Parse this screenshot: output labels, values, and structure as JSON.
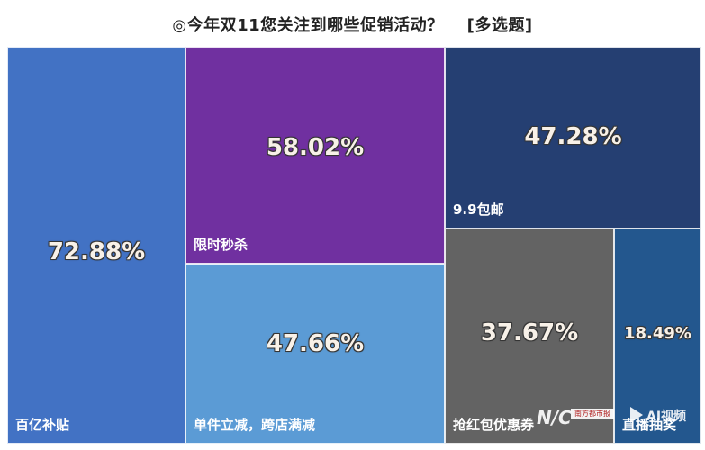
{
  "title": "◎今年双11您关注到哪些促销活动？",
  "title_suffix": "[多选题]",
  "chart_data": {
    "type": "treemap",
    "unit": "%",
    "items": [
      {
        "label": "百亿补贴",
        "value": 72.88,
        "value_text": "72.88%",
        "color": "#4272c4"
      },
      {
        "label": "限时秒杀",
        "value": 58.02,
        "value_text": "58.02%",
        "color": "#7030a0"
      },
      {
        "label": "单件立减，跨店满减",
        "value": 47.66,
        "value_text": "47.66%",
        "color": "#5b9bd5"
      },
      {
        "label": "9.9包邮",
        "value": 47.28,
        "value_text": "47.28%",
        "color": "#253f72"
      },
      {
        "label": "抢红包优惠券",
        "value": 37.67,
        "value_text": "37.67%",
        "color": "#636363"
      },
      {
        "label": "直播抽奖",
        "value": 18.49,
        "value_text": "18.49%",
        "color": "#23578e"
      }
    ]
  },
  "watermark": {
    "nc": "N/C",
    "box": "南方都市报",
    "text": "AI视频"
  }
}
